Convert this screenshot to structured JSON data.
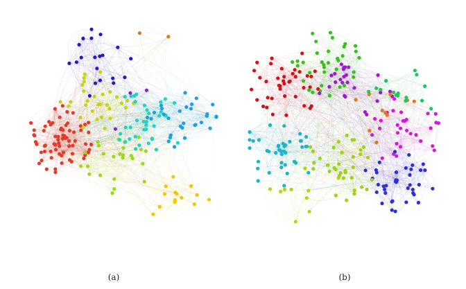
{
  "figure": {
    "captions": {
      "a": "(a)",
      "b": "(b)"
    },
    "panels": [
      {
        "id": "a",
        "community_colors": [
          "#e23b2a",
          "#2b17c9",
          "#c6d418",
          "#9bd920",
          "#23d3c2",
          "#1f9fe0",
          "#f0c800",
          "#e07a10",
          "#7a2cc9"
        ]
      },
      {
        "id": "b",
        "community_colors": [
          "#d1121c",
          "#36c21b",
          "#9c1ad1",
          "#d11ad1",
          "#2a2fd6",
          "#19b6c7",
          "#b5d50f",
          "#9fd119",
          "#e0781c",
          "#24c45e"
        ]
      }
    ]
  }
}
